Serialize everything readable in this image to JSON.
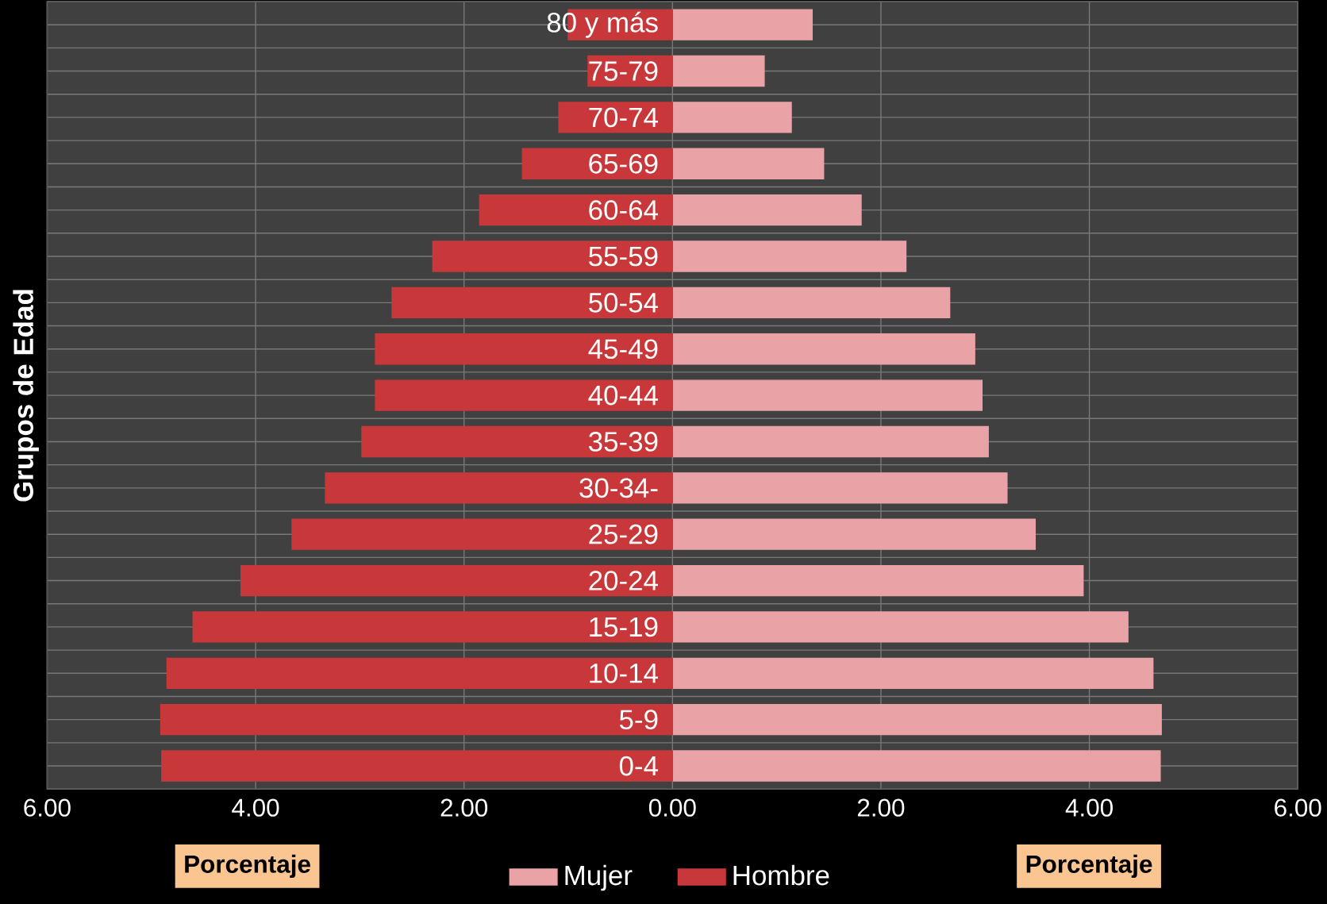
{
  "chart_data": {
    "type": "bar",
    "orientation": "horizontal",
    "ylabel": "Grupos de Edad",
    "categories": [
      "80 y más",
      "75-79",
      "70-74",
      "65-69",
      "60-64",
      "55-59",
      "50-54",
      "45-49",
      "40-44",
      "35-39",
      "30-34-",
      "25-29",
      "20-24",
      "15-19",
      "10-14",
      "5-9",
      "0-4"
    ],
    "series": [
      {
        "name": "Hombre",
        "color": "#c8383a",
        "values": [
          -1.0,
          -0.81,
          -1.09,
          -1.44,
          -1.85,
          -2.3,
          -2.69,
          -2.85,
          -2.85,
          -2.98,
          -3.33,
          -3.65,
          -4.14,
          -4.6,
          -4.85,
          -4.91,
          -4.9
        ]
      },
      {
        "name": "Mujer",
        "color": "#e9a2a6",
        "values": [
          1.34,
          0.88,
          1.14,
          1.45,
          1.81,
          2.24,
          2.66,
          2.9,
          2.97,
          3.03,
          3.21,
          3.48,
          3.94,
          4.37,
          4.61,
          4.69,
          4.68
        ]
      }
    ],
    "xlim": [
      -6,
      6
    ],
    "xticks": [
      {
        "value": -6,
        "label": "6.00"
      },
      {
        "value": -4,
        "label": "4.00"
      },
      {
        "value": -2,
        "label": "2.00"
      },
      {
        "value": 0,
        "label": "0.00"
      },
      {
        "value": 2,
        "label": "2.00"
      },
      {
        "value": 4,
        "label": "4.00"
      },
      {
        "value": 6,
        "label": "6.00"
      }
    ],
    "annotations": [
      "Porcentaje",
      "Porcentaje"
    ],
    "stacked": true,
    "grid": true,
    "legend": "bottom"
  }
}
